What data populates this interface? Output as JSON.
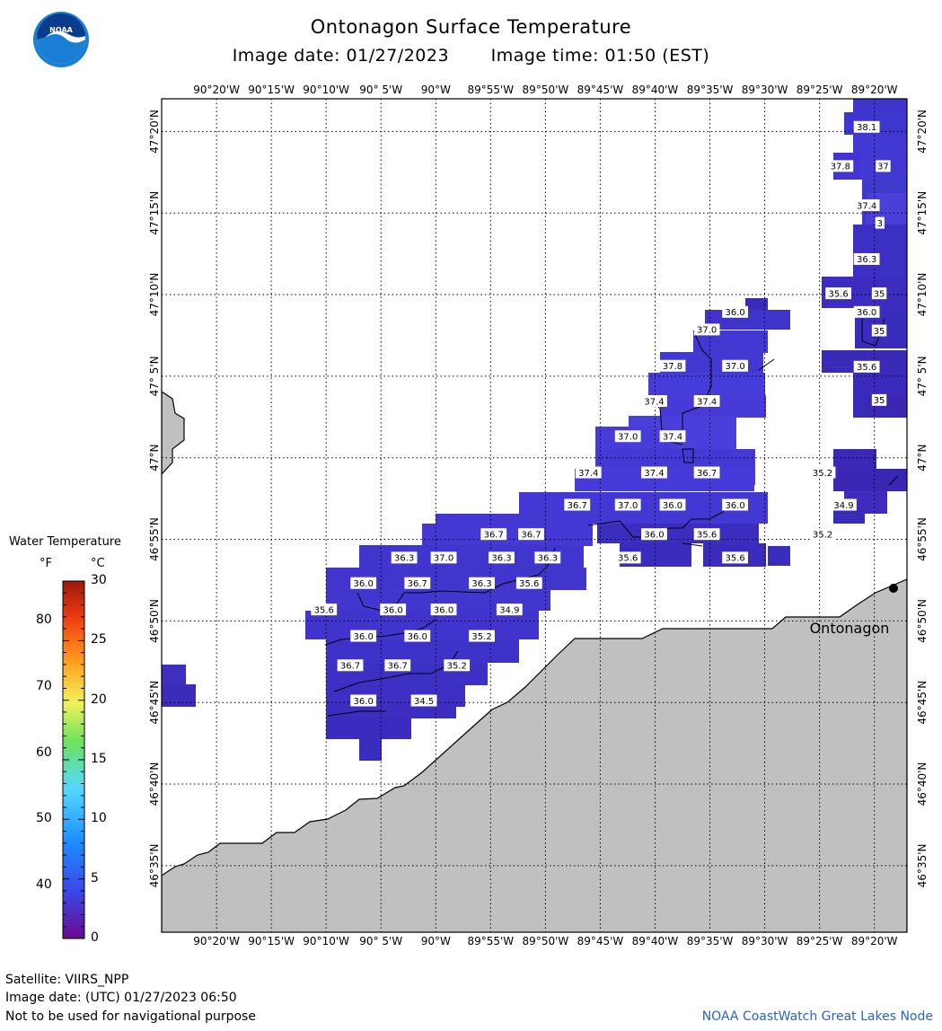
{
  "title": "Ontonagon Surface Temperature",
  "image_date": "Image date: 01/27/2023",
  "image_time": "Image time: 01:50 (EST)",
  "logo_text": "NOAA",
  "legend": {
    "title": "Water Temperature",
    "unit_f": "°F",
    "unit_c": "°C",
    "f_ticks": [
      "80",
      "70",
      "60",
      "50",
      "40"
    ],
    "c_ticks": [
      "30",
      "25",
      "20",
      "15",
      "10",
      "5",
      "0"
    ],
    "colors": [
      "#6a0a8f",
      "#3b46e6",
      "#1e8cff",
      "#56d8ff",
      "#6be25e",
      "#f2f25a",
      "#ff9a1f",
      "#ee3b10",
      "#9a1a0a"
    ]
  },
  "axes": {
    "lon_labels": [
      "90°20'W",
      "90°15'W",
      "90°10'W",
      "90° 5'W",
      "90°W",
      "89°55'W",
      "89°50'W",
      "89°45'W",
      "89°40'W",
      "89°35'W",
      "89°30'W",
      "89°25'W",
      "89°20'W"
    ],
    "lat_labels": [
      "47°20'N",
      "47°15'N",
      "47°10'N",
      "47° 5'N",
      "47°N",
      "46°55'N",
      "46°50'N",
      "46°45'N",
      "46°40'N",
      "46°35'N"
    ]
  },
  "city": "Ontonagon",
  "temperature_labels": [
    {
      "value": "38.1",
      "lon": -89.345,
      "lat": 47.338
    },
    {
      "value": "37.8",
      "lon": -89.385,
      "lat": 47.298
    },
    {
      "value": "37",
      "lon": -89.32,
      "lat": 47.298
    },
    {
      "value": "37.4",
      "lon": -89.345,
      "lat": 47.258
    },
    {
      "value": "3",
      "lon": -89.325,
      "lat": 47.24
    },
    {
      "value": "36.3",
      "lon": -89.345,
      "lat": 47.203
    },
    {
      "value": "35.6",
      "lon": -89.388,
      "lat": 47.168
    },
    {
      "value": "35",
      "lon": -89.326,
      "lat": 47.168
    },
    {
      "value": "36.0",
      "lon": -89.345,
      "lat": 47.149
    },
    {
      "value": "35",
      "lon": -89.326,
      "lat": 47.13
    },
    {
      "value": "35.6",
      "lon": -89.345,
      "lat": 47.093
    },
    {
      "value": "35",
      "lon": -89.326,
      "lat": 47.059
    },
    {
      "value": "36.0",
      "lon": -89.545,
      "lat": 47.149
    },
    {
      "value": "37.0",
      "lon": -89.588,
      "lat": 47.131
    },
    {
      "value": "37.8",
      "lon": -89.64,
      "lat": 47.094
    },
    {
      "value": "37.0",
      "lon": -89.545,
      "lat": 47.094
    },
    {
      "value": "37.4",
      "lon": -89.668,
      "lat": 47.058
    },
    {
      "value": "37.4",
      "lon": -89.588,
      "lat": 47.058
    },
    {
      "value": "37.0",
      "lon": -89.708,
      "lat": 47.022
    },
    {
      "value": "37.4",
      "lon": -89.64,
      "lat": 47.022
    },
    {
      "value": "37.4",
      "lon": -89.768,
      "lat": 46.985
    },
    {
      "value": "37.4",
      "lon": -89.668,
      "lat": 46.985
    },
    {
      "value": "36.7",
      "lon": -89.588,
      "lat": 46.985
    },
    {
      "value": "35.2",
      "lon": -89.412,
      "lat": 46.985
    },
    {
      "value": "36.7",
      "lon": -89.785,
      "lat": 46.952
    },
    {
      "value": "37.0",
      "lon": -89.708,
      "lat": 46.952
    },
    {
      "value": "36.0",
      "lon": -89.64,
      "lat": 46.952
    },
    {
      "value": "36.0",
      "lon": -89.545,
      "lat": 46.952
    },
    {
      "value": "34.9",
      "lon": -89.38,
      "lat": 46.952
    },
    {
      "value": "36.7",
      "lon": -89.912,
      "lat": 46.922
    },
    {
      "value": "36.7",
      "lon": -89.855,
      "lat": 46.922
    },
    {
      "value": "36.0",
      "lon": -89.668,
      "lat": 46.922
    },
    {
      "value": "35.6",
      "lon": -89.588,
      "lat": 46.922
    },
    {
      "value": "35.2",
      "lon": -89.412,
      "lat": 46.922
    },
    {
      "value": "36.3",
      "lon": -90.048,
      "lat": 46.898
    },
    {
      "value": "37.0",
      "lon": -89.988,
      "lat": 46.898
    },
    {
      "value": "36.3",
      "lon": -89.9,
      "lat": 46.898
    },
    {
      "value": "36.3",
      "lon": -89.83,
      "lat": 46.898
    },
    {
      "value": "35.6",
      "lon": -89.708,
      "lat": 46.898
    },
    {
      "value": "35.6",
      "lon": -89.545,
      "lat": 46.898
    },
    {
      "value": "36.0",
      "lon": -90.11,
      "lat": 46.872
    },
    {
      "value": "36.7",
      "lon": -90.028,
      "lat": 46.872
    },
    {
      "value": "36.3",
      "lon": -89.93,
      "lat": 46.872
    },
    {
      "value": "35.6",
      "lon": -89.858,
      "lat": 46.872
    },
    {
      "value": "35.6",
      "lon": -90.17,
      "lat": 46.845
    },
    {
      "value": "36.0",
      "lon": -90.065,
      "lat": 46.845
    },
    {
      "value": "36.0",
      "lon": -89.988,
      "lat": 46.845
    },
    {
      "value": "34.9",
      "lon": -89.888,
      "lat": 46.845
    },
    {
      "value": "36.0",
      "lon": -90.11,
      "lat": 46.818
    },
    {
      "value": "36.0",
      "lon": -90.028,
      "lat": 46.818
    },
    {
      "value": "35.2",
      "lon": -89.93,
      "lat": 46.818
    },
    {
      "value": "36.7",
      "lon": -90.13,
      "lat": 46.788
    },
    {
      "value": "36.7",
      "lon": -90.058,
      "lat": 46.788
    },
    {
      "value": "35.2",
      "lon": -89.968,
      "lat": 46.788
    },
    {
      "value": "36.0",
      "lon": -90.11,
      "lat": 46.752
    },
    {
      "value": "34.5",
      "lon": -90.018,
      "lat": 46.752
    }
  ],
  "footer": {
    "satellite": "Satellite: VIIRS_NPP",
    "utc_date": "Image date: (UTC) 01/27/2023  06:50",
    "disclaimer": "Not to be used for navigational purpose",
    "credit": "NOAA CoastWatch Great Lakes Node"
  }
}
